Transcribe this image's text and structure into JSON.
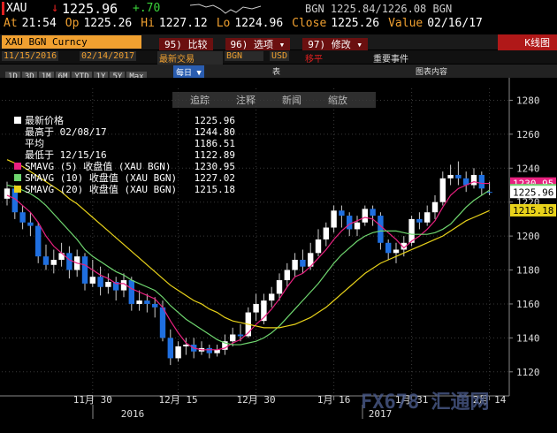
{
  "header": {
    "symbol": "XAU",
    "arrow": "↓",
    "last": "1225.96",
    "change": "+.70",
    "quote": "BGN 1225.84/1226.08 BGN",
    "fields": [
      {
        "label": "At",
        "value": "21:54"
      },
      {
        "label": "Op",
        "value": "1225.26"
      },
      {
        "label": "Hi",
        "value": "1227.12"
      },
      {
        "label": "Lo",
        "value": "1224.96"
      },
      {
        "label": "Close",
        "value": "1225.26"
      },
      {
        "label": "Value",
        "value": "02/16/17"
      }
    ]
  },
  "menu": {
    "security": "XAU BGN Curncy",
    "buttons": [
      "95) 比较",
      "96) 选项 ▾",
      "97) 修改 ▾"
    ],
    "view": "K线图"
  },
  "controls": {
    "start": "11/15/2016",
    "end": "02/14/2017",
    "mode": "最新交易",
    "source": "BGN",
    "currency": "USD",
    "smooth": "移平",
    "events": "重要事件"
  },
  "periods": [
    "1D",
    "3D",
    "1M",
    "6M",
    "YTD",
    "1Y",
    "5Y",
    "Max"
  ],
  "frequency": "每日 ▼",
  "table": "表",
  "content": "图表内容",
  "chart_tools": [
    "追踪",
    "注释",
    "新闻",
    "缩放"
  ],
  "watermark": "FX678 汇通网",
  "chart_data": {
    "type": "candlestick",
    "categories": [
      null,
      null,
      null,
      null,
      null,
      null,
      null,
      null,
      null,
      null,
      null,
      "11月 30",
      null,
      null,
      null,
      null,
      null,
      null,
      null,
      null,
      null,
      null,
      "12月 15",
      null,
      null,
      null,
      null,
      null,
      null,
      null,
      null,
      null,
      "12月 30",
      null,
      null,
      null,
      null,
      null,
      null,
      null,
      null,
      null,
      "1月 16",
      null,
      null,
      null,
      null,
      null,
      null,
      null,
      null,
      null,
      "1月 31",
      null,
      null,
      null,
      null,
      null,
      null,
      null,
      null,
      null,
      "2月 14"
    ],
    "years": [
      "2016",
      "2017"
    ],
    "open": [
      1222,
      1228,
      1214,
      1208,
      1206,
      1188,
      1183,
      1186,
      1190,
      1180,
      1188,
      1172,
      1176,
      1170,
      1173,
      1168,
      1174,
      1160,
      1162,
      1160,
      1158,
      1140,
      1128,
      1135,
      1136,
      1132,
      1134,
      1131,
      1133,
      1138,
      1142,
      1141,
      1155,
      1150,
      1162,
      1166,
      1174,
      1180,
      1186,
      1182,
      1190,
      1198,
      1205,
      1215,
      1212,
      1204,
      1208,
      1216,
      1212,
      1196,
      1190,
      1192,
      1196,
      1210,
      1208,
      1214,
      1220,
      1234,
      1236,
      1234,
      1230,
      1236,
      1226
    ],
    "high": [
      1232,
      1230,
      1218,
      1214,
      1208,
      1195,
      1192,
      1196,
      1194,
      1192,
      1190,
      1186,
      1182,
      1178,
      1176,
      1178,
      1176,
      1168,
      1166,
      1164,
      1162,
      1145,
      1138,
      1140,
      1140,
      1138,
      1136,
      1136,
      1142,
      1146,
      1148,
      1158,
      1166,
      1166,
      1170,
      1178,
      1184,
      1190,
      1192,
      1196,
      1204,
      1208,
      1218,
      1218,
      1214,
      1212,
      1218,
      1218,
      1214,
      1198,
      1196,
      1200,
      1212,
      1214,
      1218,
      1224,
      1238,
      1242,
      1244,
      1238,
      1240,
      1238,
      1232
    ],
    "low": [
      1218,
      1210,
      1204,
      1200,
      1184,
      1180,
      1178,
      1182,
      1175,
      1176,
      1168,
      1170,
      1165,
      1166,
      1162,
      1164,
      1156,
      1156,
      1155,
      1152,
      1138,
      1124,
      1126,
      1130,
      1128,
      1130,
      1128,
      1129,
      1130,
      1135,
      1138,
      1140,
      1150,
      1148,
      1158,
      1162,
      1170,
      1176,
      1178,
      1180,
      1188,
      1194,
      1202,
      1205,
      1200,
      1200,
      1206,
      1206,
      1192,
      1186,
      1184,
      1188,
      1194,
      1204,
      1206,
      1210,
      1218,
      1230,
      1230,
      1226,
      1228,
      1224,
      1224
    ],
    "close": [
      1228,
      1214,
      1208,
      1206,
      1188,
      1183,
      1186,
      1190,
      1180,
      1188,
      1172,
      1176,
      1170,
      1173,
      1168,
      1174,
      1160,
      1162,
      1160,
      1158,
      1140,
      1128,
      1135,
      1136,
      1132,
      1134,
      1131,
      1133,
      1138,
      1142,
      1141,
      1155,
      1160,
      1162,
      1166,
      1174,
      1180,
      1186,
      1182,
      1190,
      1198,
      1205,
      1215,
      1212,
      1204,
      1208,
      1216,
      1212,
      1196,
      1190,
      1192,
      1196,
      1210,
      1208,
      1214,
      1220,
      1234,
      1236,
      1234,
      1230,
      1236,
      1228,
      1226
    ],
    "up_color": "#ffffff",
    "down_color": "#1f6fe0",
    "series": [
      {
        "name": "SMAVG (5) 收盘值 (XAU BGN)",
        "color": "#e8207f",
        "last": "1230.95",
        "values": [
          1224,
          1222,
          1218,
          1214,
          1208,
          1200,
          1194,
          1190,
          1186,
          1184,
          1183,
          1180,
          1177,
          1175,
          1172,
          1172,
          1169,
          1167,
          1165,
          1163,
          1158,
          1150,
          1143,
          1137,
          1134,
          1133,
          1133,
          1133,
          1134,
          1137,
          1139,
          1143,
          1148,
          1152,
          1157,
          1163,
          1170,
          1176,
          1178,
          1182,
          1187,
          1192,
          1198,
          1203,
          1207,
          1209,
          1211,
          1210,
          1206,
          1202,
          1198,
          1193,
          1197,
          1200,
          1204,
          1209,
          1217,
          1224,
          1228,
          1230,
          1232,
          1231,
          1231
        ]
      },
      {
        "name": "SMAVG (10) 收盘值 (XAU BGN)",
        "color": "#6fd66f",
        "last": "1227.02",
        "values": [
          1230,
          1229,
          1227,
          1225,
          1222,
          1218,
          1213,
          1208,
          1203,
          1198,
          1192,
          1188,
          1185,
          1182,
          1179,
          1177,
          1174,
          1172,
          1170,
          1168,
          1164,
          1159,
          1155,
          1151,
          1148,
          1145,
          1142,
          1139,
          1137,
          1136,
          1136,
          1137,
          1138,
          1140,
          1143,
          1147,
          1152,
          1157,
          1162,
          1167,
          1172,
          1178,
          1184,
          1189,
          1193,
          1197,
          1200,
          1202,
          1203,
          1203,
          1203,
          1202,
          1201,
          1201,
          1201,
          1202,
          1204,
          1207,
          1212,
          1217,
          1221,
          1224,
          1227
        ]
      },
      {
        "name": "SMAVG (20) 收盘值 (XAU BGN)",
        "color": "#e8d21a",
        "last": "1215.18",
        "values": [
          1245,
          1243,
          1241,
          1238,
          1235,
          1232,
          1229,
          1226,
          1222,
          1219,
          1215,
          1211,
          1207,
          1203,
          1199,
          1195,
          1191,
          1187,
          1183,
          1179,
          1175,
          1171,
          1168,
          1165,
          1162,
          1160,
          1157,
          1155,
          1152,
          1150,
          1149,
          1148,
          1147,
          1146,
          1146,
          1146,
          1147,
          1148,
          1150,
          1152,
          1155,
          1158,
          1162,
          1166,
          1170,
          1174,
          1178,
          1181,
          1184,
          1186,
          1188,
          1190,
          1192,
          1194,
          1196,
          1198,
          1200,
          1203,
          1206,
          1209,
          1211,
          1213,
          1215
        ]
      }
    ],
    "stats": [
      {
        "label": "最新价格",
        "value": "1225.96"
      },
      {
        "label": "最高于 02/08/17",
        "value": "1244.80"
      },
      {
        "label": "平均",
        "value": "1186.51"
      },
      {
        "label": "最低于 12/15/16",
        "value": "1122.89"
      }
    ],
    "ylim": [
      1110,
      1287
    ],
    "yticks": [
      1120,
      1140,
      1160,
      1180,
      1200,
      1220,
      1240,
      1260,
      1280
    ],
    "grid": true
  }
}
